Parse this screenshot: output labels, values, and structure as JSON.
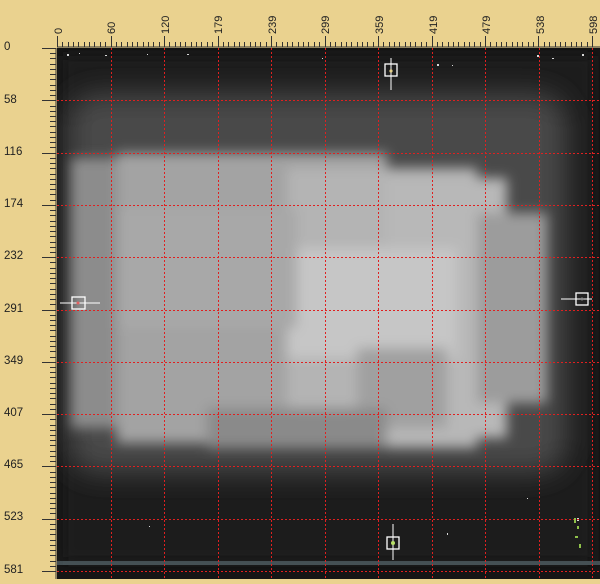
{
  "ruler": {
    "x_ticks": [
      "0",
      "60",
      "120",
      "179",
      "239",
      "299",
      "359",
      "419",
      "479",
      "538",
      "598"
    ],
    "y_ticks": [
      "0",
      "58",
      "116",
      "174",
      "232",
      "291",
      "349",
      "407",
      "465",
      "523",
      "581"
    ]
  },
  "image_view": {
    "grid_color": "#e02020",
    "marker_color": "#ffffff"
  }
}
